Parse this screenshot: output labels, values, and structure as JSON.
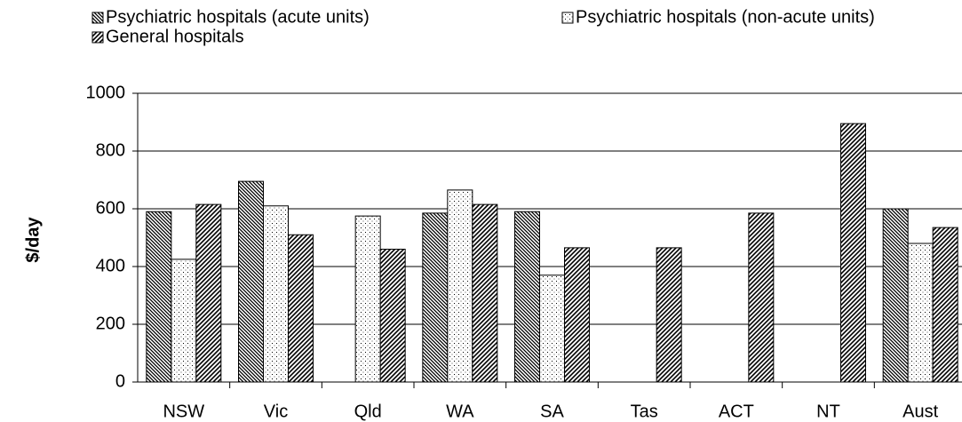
{
  "chart_data": {
    "type": "bar",
    "y_label": "$/day",
    "categories": [
      "NSW",
      "Vic",
      "Qld",
      "WA",
      "SA",
      "Tas",
      "ACT",
      "NT",
      "Aust"
    ],
    "series": [
      {
        "name": "Psychiatric hospitals (acute units)",
        "color": "#000000",
        "pattern": "backslash",
        "values": [
          590,
          695,
          null,
          585,
          590,
          null,
          null,
          null,
          600
        ]
      },
      {
        "name": "Psychiatric hospitals (non-acute units)",
        "color": "#000000",
        "pattern": "dots",
        "values": [
          425,
          610,
          575,
          665,
          370,
          null,
          null,
          null,
          480
        ]
      },
      {
        "name": "General hospitals",
        "color": "#000000",
        "pattern": "slash",
        "values": [
          615,
          510,
          460,
          615,
          465,
          465,
          585,
          895,
          535
        ]
      }
    ],
    "ylim": [
      0,
      1000
    ],
    "yticks": [
      0,
      200,
      400,
      600,
      800,
      1000
    ],
    "grid": true
  }
}
